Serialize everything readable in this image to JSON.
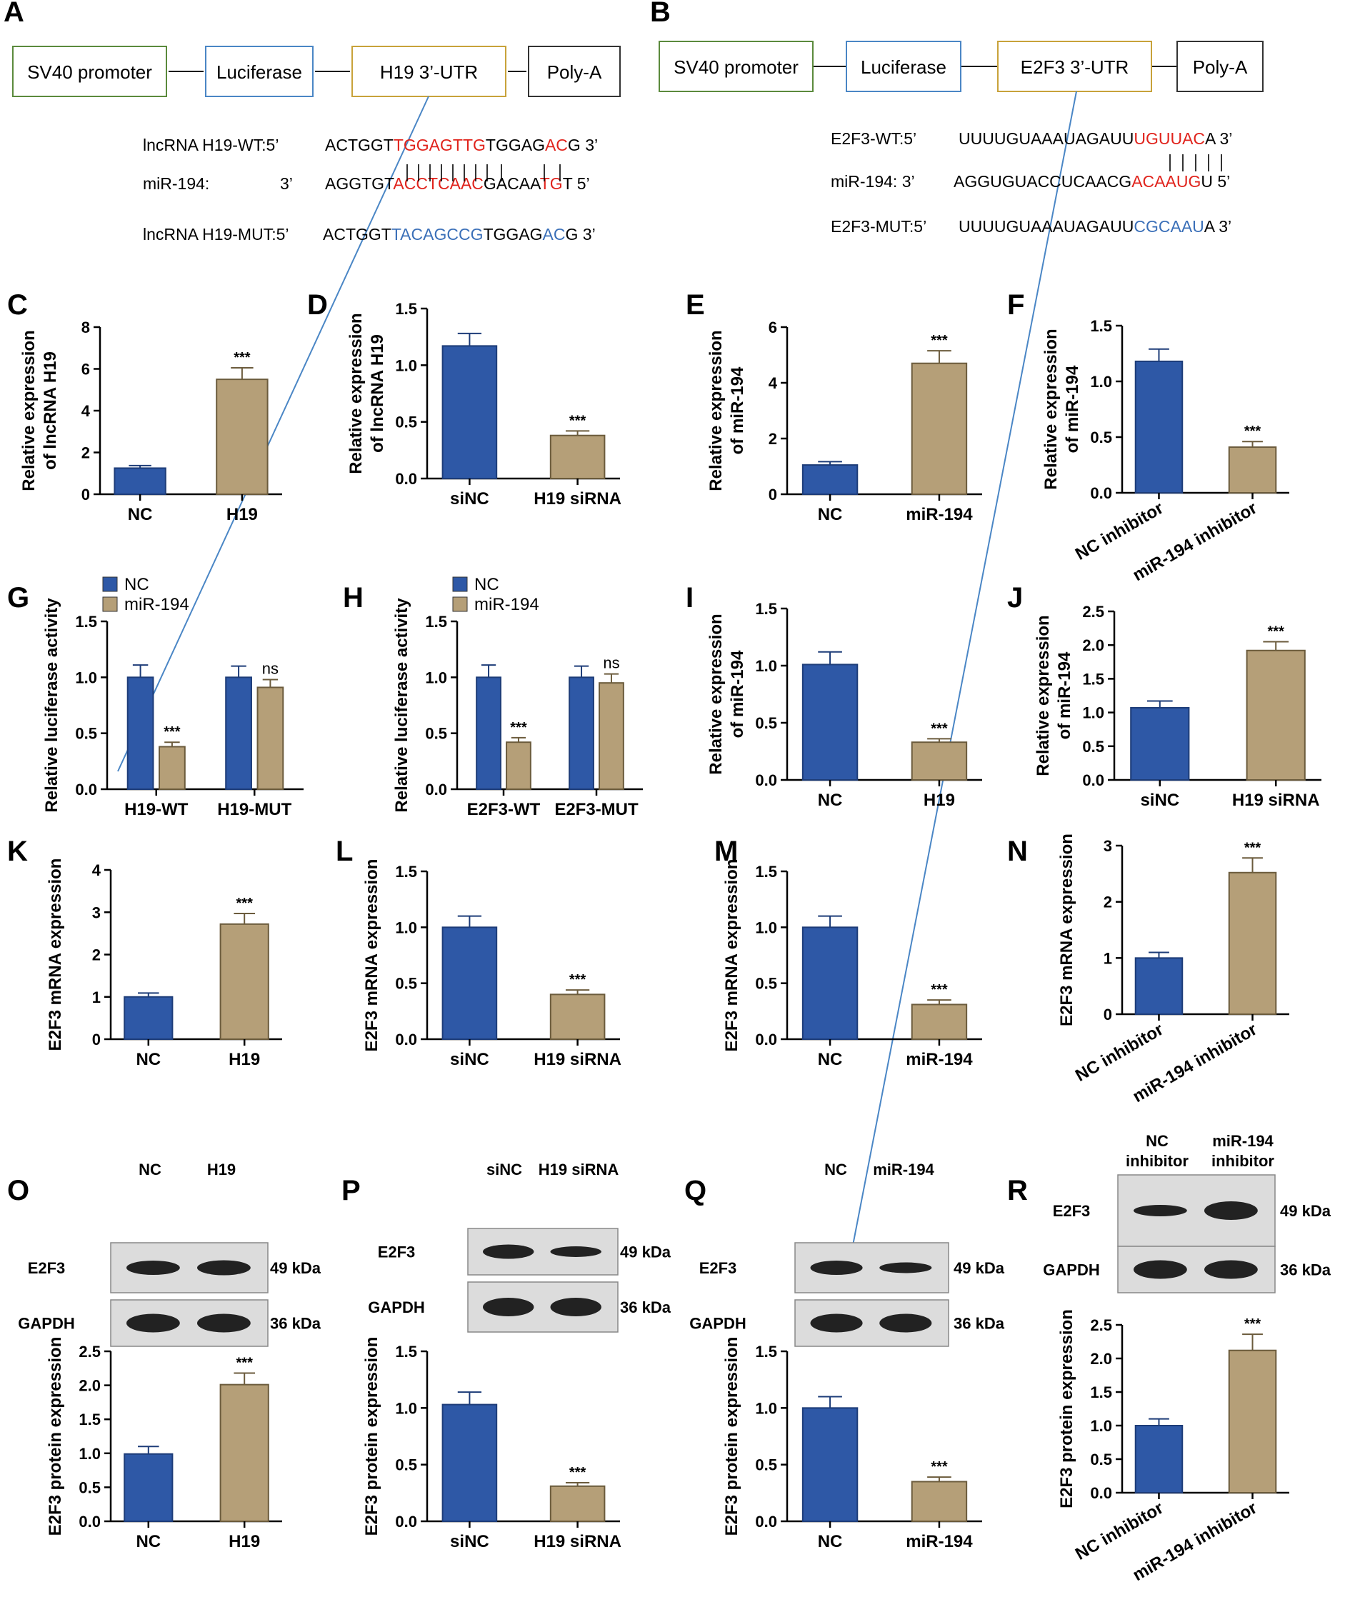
{
  "colors": {
    "blue": "#2e58a6",
    "tan": "#b59f78",
    "red": "#e0231c",
    "mutblue": "#3a6fb8",
    "axis": "#000000"
  },
  "panels": {
    "A": {
      "letter": "A",
      "boxes": [
        "SV40 promoter",
        "Luciferase",
        "H19 3’-UTR",
        "Poly-A"
      ],
      "rows": [
        {
          "name": "lncRNA H19-WT:5’",
          "seq": [
            [
              "ACTGGT",
              "k"
            ],
            [
              "TGGAGTTG",
              "r"
            ],
            [
              "TGGAG",
              "k"
            ],
            [
              "AC",
              "r"
            ],
            [
              "G 3’",
              "k"
            ]
          ]
        },
        {
          "name": "miR-194:",
          "prime": "3’",
          "seq": [
            [
              "AGGTGT",
              "k"
            ],
            [
              "ACCTCAAC",
              "r"
            ],
            [
              "GACAA",
              "k"
            ],
            [
              "TG",
              "r"
            ],
            [
              "T 5’",
              "k"
            ]
          ]
        },
        {
          "name": "lncRNA H19-MUT:5’",
          "seq": [
            [
              "ACTGGT",
              "k"
            ],
            [
              "TACAGCCG",
              "b"
            ],
            [
              "TGGAG",
              "k"
            ],
            [
              "AC",
              "b"
            ],
            [
              "G 3’",
              "k"
            ]
          ]
        }
      ]
    },
    "B": {
      "letter": "B",
      "boxes": [
        "SV40 promoter",
        "Luciferase",
        "E2F3 3’-UTR",
        "Poly-A"
      ],
      "rows": [
        {
          "name": "E2F3-WT:5’",
          "seq": [
            [
              "UUUUGUAAAUAGAUU",
              "k"
            ],
            [
              "UGUUAC",
              "r"
            ],
            [
              "A 3’",
              "k"
            ]
          ]
        },
        {
          "name": "miR-194: 3’",
          "seq": [
            [
              "AGGUGUACCUCAACG",
              "k"
            ],
            [
              "ACAAUG",
              "r"
            ],
            [
              "U 5’",
              "k"
            ]
          ]
        },
        {
          "name": "E2F3-MUT:5’",
          "seq": [
            [
              "UUUUGUAAAUAGAUU",
              "k"
            ],
            [
              "CGCAAU",
              "b"
            ],
            [
              "A 3’",
              "k"
            ]
          ]
        }
      ]
    },
    "O": {
      "letter": "O",
      "lanes": [
        "NC",
        "H19"
      ],
      "rows": [
        "E2F3",
        "GAPDH"
      ],
      "kda": [
        "49 kDa",
        "36 kDa"
      ]
    },
    "P": {
      "letter": "P",
      "lanes": [
        "siNC",
        "H19 siRNA"
      ],
      "rows": [
        "E2F3",
        "GAPDH"
      ],
      "kda": [
        "49 kDa",
        "36 kDa"
      ]
    },
    "Q": {
      "letter": "Q",
      "lanes": [
        "NC",
        "miR-194"
      ],
      "rows": [
        "E2F3",
        "GAPDH"
      ],
      "kda": [
        "49 kDa",
        "36 kDa"
      ]
    },
    "R": {
      "letter": "R",
      "lanes": [
        "NC\ninhibitor",
        "miR-194\ninhibitor"
      ],
      "rows": [
        "E2F3",
        "GAPDH"
      ],
      "kda": [
        "49 kDa",
        "36 kDa"
      ]
    }
  },
  "chart_data": [
    {
      "panel": "C",
      "type": "bar",
      "ylabel": [
        "Relative expression",
        "of lncRNA H19"
      ],
      "categories": [
        "NC",
        "H19"
      ],
      "values": [
        1.25,
        5.5
      ],
      "errors": [
        0.12,
        0.55
      ],
      "sig": [
        "",
        "***"
      ],
      "ylim": [
        0,
        8
      ],
      "yticks": [
        "0",
        "2",
        "4",
        "6",
        "8"
      ]
    },
    {
      "panel": "D",
      "type": "bar",
      "ylabel": [
        "Relative expression",
        "of lncRNA H19"
      ],
      "categories": [
        "siNC",
        "H19 siRNA"
      ],
      "values": [
        1.17,
        0.38
      ],
      "errors": [
        0.11,
        0.04
      ],
      "sig": [
        "",
        "***"
      ],
      "ylim": [
        0,
        1.5
      ],
      "yticks": [
        "0.0",
        "0.5",
        "1.0",
        "1.5"
      ]
    },
    {
      "panel": "E",
      "type": "bar",
      "ylabel": [
        "Relative expression",
        "of miR-194"
      ],
      "categories": [
        "NC",
        "miR-194"
      ],
      "values": [
        1.05,
        4.7
      ],
      "errors": [
        0.12,
        0.45
      ],
      "sig": [
        "",
        "***"
      ],
      "ylim": [
        0,
        6
      ],
      "yticks": [
        "0",
        "2",
        "4",
        "6"
      ]
    },
    {
      "panel": "F",
      "type": "bar",
      "ylabel": [
        "Relative expression",
        "of miR-194"
      ],
      "categories": [
        "NC inhibitor",
        "miR-194 inhibitor"
      ],
      "values": [
        1.18,
        0.41
      ],
      "errors": [
        0.11,
        0.05
      ],
      "sig": [
        "",
        "***"
      ],
      "ylim": [
        0,
        1.5
      ],
      "yticks": [
        "0.0",
        "0.5",
        "1.0",
        "1.5"
      ],
      "rotate": true
    },
    {
      "panel": "G",
      "type": "grouped-bar",
      "ylabel": [
        "Relative luciferase activity"
      ],
      "categories": [
        "H19-WT",
        "H19-MUT"
      ],
      "series": [
        {
          "name": "NC",
          "values": [
            1.0,
            1.0
          ],
          "errors": [
            0.11,
            0.1
          ]
        },
        {
          "name": "miR-194",
          "values": [
            0.38,
            0.91
          ],
          "errors": [
            0.04,
            0.07
          ]
        }
      ],
      "sig": [
        [
          "",
          "***"
        ],
        [
          "",
          "ns"
        ]
      ],
      "ylim": [
        0,
        1.5
      ],
      "yticks": [
        "0.0",
        "0.5",
        "1.0",
        "1.5"
      ]
    },
    {
      "panel": "H",
      "type": "grouped-bar",
      "ylabel": [
        "Relative luciferase activity"
      ],
      "categories": [
        "E2F3-WT",
        "E2F3-MUT"
      ],
      "series": [
        {
          "name": "NC",
          "values": [
            1.0,
            1.0
          ],
          "errors": [
            0.11,
            0.1
          ]
        },
        {
          "name": "miR-194",
          "values": [
            0.42,
            0.95
          ],
          "errors": [
            0.04,
            0.08
          ]
        }
      ],
      "sig": [
        [
          "",
          "***"
        ],
        [
          "",
          "ns"
        ]
      ],
      "ylim": [
        0,
        1.5
      ],
      "yticks": [
        "0.0",
        "0.5",
        "1.0",
        "1.5"
      ]
    },
    {
      "panel": "I",
      "type": "bar",
      "ylabel": [
        "Relative expression",
        "of miR-194"
      ],
      "categories": [
        "NC",
        "H19"
      ],
      "values": [
        1.01,
        0.33
      ],
      "errors": [
        0.11,
        0.03
      ],
      "sig": [
        "",
        "***"
      ],
      "ylim": [
        0,
        1.5
      ],
      "yticks": [
        "0.0",
        "0.5",
        "1.0",
        "1.5"
      ]
    },
    {
      "panel": "J",
      "type": "bar",
      "ylabel": [
        "Relative expression",
        "of miR-194"
      ],
      "categories": [
        "siNC",
        "H19 siRNA"
      ],
      "values": [
        1.07,
        1.92
      ],
      "errors": [
        0.1,
        0.13
      ],
      "sig": [
        "",
        "***"
      ],
      "ylim": [
        0,
        2.5
      ],
      "yticks": [
        "0.0",
        "0.5",
        "1.0",
        "1.5",
        "2.0",
        "2.5"
      ]
    },
    {
      "panel": "K",
      "type": "bar",
      "ylabel": [
        "E2F3 mRNA expression"
      ],
      "categories": [
        "NC",
        "H19"
      ],
      "values": [
        1.0,
        2.72
      ],
      "errors": [
        0.09,
        0.25
      ],
      "sig": [
        "",
        "***"
      ],
      "ylim": [
        0,
        4
      ],
      "yticks": [
        "0",
        "1",
        "2",
        "3",
        "4"
      ]
    },
    {
      "panel": "L",
      "type": "bar",
      "ylabel": [
        "E2F3 mRNA expression"
      ],
      "categories": [
        "siNC",
        "H19 siRNA"
      ],
      "values": [
        1.0,
        0.4
      ],
      "errors": [
        0.1,
        0.04
      ],
      "sig": [
        "",
        "***"
      ],
      "ylim": [
        0,
        1.5
      ],
      "yticks": [
        "0.0",
        "0.5",
        "1.0",
        "1.5"
      ]
    },
    {
      "panel": "M",
      "type": "bar",
      "ylabel": [
        "E2F3 mRNA expression"
      ],
      "categories": [
        "NC",
        "miR-194"
      ],
      "values": [
        1.0,
        0.31
      ],
      "errors": [
        0.1,
        0.04
      ],
      "sig": [
        "",
        "***"
      ],
      "ylim": [
        0,
        1.5
      ],
      "yticks": [
        "0.0",
        "0.5",
        "1.0",
        "1.5"
      ]
    },
    {
      "panel": "N",
      "type": "bar",
      "ylabel": [
        "E2F3 mRNA expression"
      ],
      "categories": [
        "NC inhibitor",
        "miR-194 inhibitor"
      ],
      "values": [
        1.0,
        2.52
      ],
      "errors": [
        0.1,
        0.26
      ],
      "sig": [
        "",
        "***"
      ],
      "ylim": [
        0,
        3
      ],
      "yticks": [
        "0",
        "1",
        "2",
        "3"
      ],
      "rotate": true
    },
    {
      "panel": "O",
      "type": "bar",
      "ylabel": [
        "E2F3 protein expression"
      ],
      "categories": [
        "NC",
        "H19"
      ],
      "values": [
        0.99,
        2.01
      ],
      "errors": [
        0.11,
        0.17
      ],
      "sig": [
        "",
        "***"
      ],
      "ylim": [
        0,
        2.5
      ],
      "yticks": [
        "0.0",
        "0.5",
        "1.0",
        "1.5",
        "2.0",
        "2.5"
      ]
    },
    {
      "panel": "P",
      "type": "bar",
      "ylabel": [
        "E2F3 protein expression"
      ],
      "categories": [
        "siNC",
        "H19 siRNA"
      ],
      "values": [
        1.03,
        0.31
      ],
      "errors": [
        0.11,
        0.03
      ],
      "sig": [
        "",
        "***"
      ],
      "ylim": [
        0,
        1.5
      ],
      "yticks": [
        "0.0",
        "0.5",
        "1.0",
        "1.5"
      ]
    },
    {
      "panel": "Q",
      "type": "bar",
      "ylabel": [
        "E2F3 protein expression"
      ],
      "categories": [
        "NC",
        "miR-194"
      ],
      "values": [
        1.0,
        0.35
      ],
      "errors": [
        0.1,
        0.04
      ],
      "sig": [
        "",
        "***"
      ],
      "ylim": [
        0,
        1.5
      ],
      "yticks": [
        "0.0",
        "0.5",
        "1.0",
        "1.5"
      ]
    },
    {
      "panel": "R",
      "type": "bar",
      "ylabel": [
        "E2F3 protein expression"
      ],
      "categories": [
        "NC inhibitor",
        "miR-194 inhibitor"
      ],
      "values": [
        1.0,
        2.12
      ],
      "errors": [
        0.1,
        0.24
      ],
      "sig": [
        "",
        "***"
      ],
      "ylim": [
        0,
        2.5
      ],
      "yticks": [
        "0.0",
        "0.5",
        "1.0",
        "1.5",
        "2.0",
        "2.5"
      ],
      "rotate": true
    }
  ]
}
